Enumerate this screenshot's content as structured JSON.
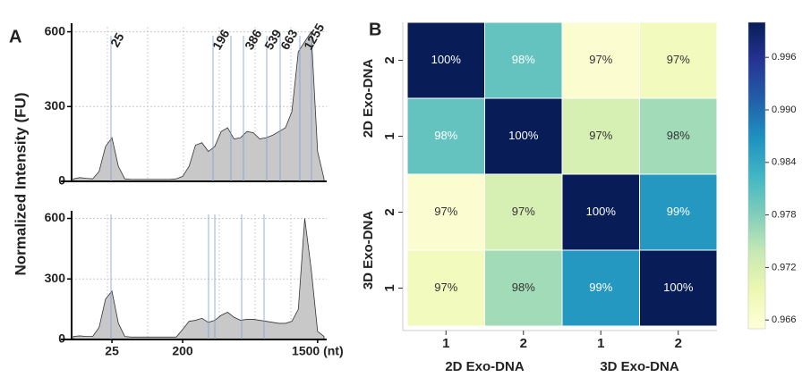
{
  "chart_data": [
    {
      "type": "area",
      "panel": "A",
      "y_label": "Normalized Intensity (FU)",
      "values": [
        10,
        15,
        12,
        10,
        40,
        140,
        175,
        60,
        10,
        8,
        8,
        8,
        8,
        8,
        8,
        8,
        10,
        20,
        60,
        145,
        155,
        120,
        140,
        200,
        215,
        170,
        175,
        200,
        195,
        170,
        175,
        185,
        200,
        215,
        280,
        520,
        560,
        600,
        120,
        10
      ],
      "color": "#c8c8c8",
      "ylim": [
        0,
        620
      ],
      "yticks": [
        0,
        300,
        600
      ],
      "grid": true,
      "annotations": [
        "25",
        "196",
        "386",
        "539",
        "663",
        "1255"
      ]
    },
    {
      "type": "area",
      "categories": [
        null,
        null,
        null,
        null,
        null,
        null,
        "25",
        null,
        null,
        null,
        null,
        null,
        null,
        null,
        null,
        null,
        null,
        "200",
        null,
        null,
        null,
        null,
        null,
        null,
        null,
        null,
        null,
        null,
        null,
        null,
        null,
        null,
        null,
        null,
        null,
        null,
        null,
        null,
        "1500 (nt)",
        null
      ],
      "values": [
        15,
        18,
        15,
        15,
        60,
        200,
        240,
        80,
        15,
        12,
        12,
        12,
        12,
        12,
        12,
        12,
        12,
        50,
        90,
        95,
        105,
        85,
        95,
        120,
        135,
        110,
        95,
        100,
        100,
        95,
        90,
        85,
        80,
        80,
        90,
        150,
        600,
        350,
        40,
        15
      ],
      "color": "#c8c8c8",
      "ylim": [
        0,
        620
      ],
      "yticks": [
        0,
        300,
        600
      ],
      "grid": true
    },
    {
      "type": "heatmap",
      "panel": "B",
      "x_labels": [
        "1",
        "2",
        "1",
        "2"
      ],
      "y_labels": [
        "2",
        "1",
        "2",
        "1"
      ],
      "x_groups": [
        "2D Exo-DNA",
        "3D Exo-DNA"
      ],
      "y_groups": [
        "2D Exo-DNA",
        "3D Exo-DNA"
      ],
      "values": [
        [
          1.0,
          0.98,
          0.966,
          0.968
        ],
        [
          0.98,
          1.0,
          0.972,
          0.976
        ],
        [
          0.966,
          0.972,
          1.0,
          0.986
        ],
        [
          0.968,
          0.976,
          0.986,
          1.0
        ]
      ],
      "value_labels": [
        [
          "100%",
          "98%",
          "97%",
          "97%"
        ],
        [
          "98%",
          "100%",
          "97%",
          "98%"
        ],
        [
          "97%",
          "97%",
          "100%",
          "99%"
        ],
        [
          "97%",
          "98%",
          "99%",
          "100%"
        ]
      ],
      "colormap": "YlGnBu",
      "clim": [
        0.965,
        1.0
      ],
      "cticks": [
        0.966,
        0.972,
        0.978,
        0.984,
        {
          "value": 0.99,
          "label": "0.990"
        },
        0.996
      ]
    }
  ]
}
